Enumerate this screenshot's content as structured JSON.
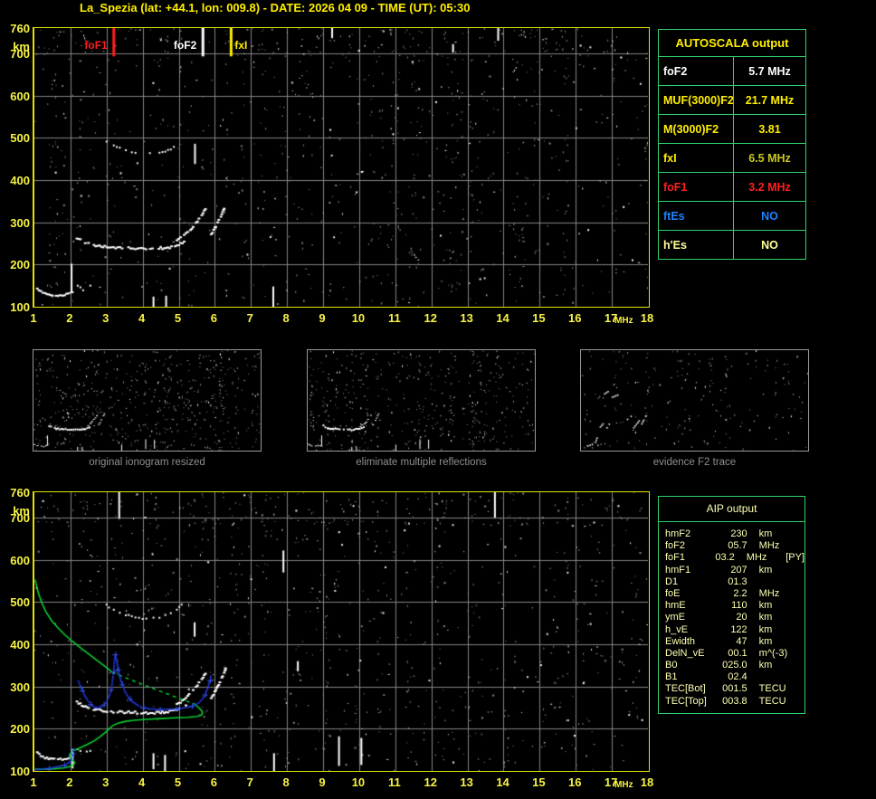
{
  "title": "La_Spezia (lat: +44.1, lon: 009.8) - DATE: 2026 04 09 - TIME (UT): 05:30",
  "colors": {
    "title": "#ffef00",
    "axis_label": "#f7f342",
    "plot_border": "#e3e300",
    "grid": "#848484",
    "noise_gray": "#8a8a8a",
    "noise_white": "#e8e8e8",
    "trace_white": "#ffffff",
    "table_border": "#2fd26a",
    "thumb_border": "#9a9a9a",
    "caption": "#8f8f8f",
    "green_profile": "#0ad032",
    "blue_trace": "#2038e0",
    "blue_cross": "#3a5aff",
    "aip_text": "#ffffb4"
  },
  "axes": {
    "x_ticks": [
      1,
      2,
      3,
      4,
      5,
      6,
      7,
      8,
      9,
      10,
      11,
      12,
      13,
      14,
      15,
      16,
      17,
      18
    ],
    "x_unit": "MHz",
    "y_ticks": [
      760,
      700,
      600,
      500,
      400,
      300,
      200,
      100
    ],
    "y_unit": "km",
    "x_range": [
      1,
      18
    ],
    "y_range": [
      100,
      760
    ]
  },
  "top_plot": {
    "seed": 7,
    "markers": [
      {
        "label": "foF1",
        "mhz": 3.2,
        "color": "#ff1f1f",
        "side": "left"
      },
      {
        "label": "foF2",
        "mhz": 5.67,
        "color": "#ffffff",
        "side": "left"
      },
      {
        "label": "fxI",
        "mhz": 6.45,
        "color": "#ffef00",
        "side": "right"
      }
    ],
    "streaks": [
      [
        13.85,
        730,
        760
      ],
      [
        9.25,
        736,
        760
      ],
      [
        5.45,
        438,
        486
      ],
      [
        7.62,
        100,
        148
      ],
      [
        4.3,
        100,
        124
      ],
      [
        4.65,
        100,
        126
      ],
      [
        2.03,
        133,
        202
      ],
      [
        12.6,
        702,
        722
      ]
    ]
  },
  "bottom_plot": {
    "seed": 13,
    "overlay": true,
    "streaks": [
      [
        3.35,
        698,
        760
      ],
      [
        13.76,
        700,
        760
      ],
      [
        7.9,
        570,
        622
      ],
      [
        7.64,
        100,
        142
      ],
      [
        9.44,
        112,
        182
      ],
      [
        10.06,
        114,
        178
      ],
      [
        5.44,
        418,
        452
      ],
      [
        4.3,
        104,
        142
      ],
      [
        4.62,
        100,
        138
      ],
      [
        2.06,
        106,
        152
      ],
      [
        8.3,
        336,
        360
      ]
    ]
  },
  "traces": {
    "echo_e": [
      [
        1.08,
        143
      ],
      [
        1.18,
        136
      ],
      [
        1.3,
        131
      ],
      [
        1.45,
        128
      ],
      [
        1.6,
        127
      ],
      [
        1.78,
        128
      ],
      [
        1.95,
        130
      ],
      [
        2.05,
        133
      ]
    ],
    "echo_e_scatter": [
      [
        2.2,
        148
      ],
      [
        2.35,
        142
      ],
      [
        2.55,
        148
      ]
    ],
    "echo_f_main": [
      [
        2.18,
        263
      ],
      [
        2.32,
        255
      ],
      [
        2.5,
        249
      ],
      [
        2.7,
        245
      ],
      [
        2.95,
        242
      ],
      [
        3.25,
        240
      ],
      [
        3.55,
        239
      ],
      [
        3.85,
        238
      ],
      [
        4.15,
        237
      ],
      [
        4.45,
        238
      ],
      [
        4.7,
        240
      ],
      [
        4.9,
        244
      ],
      [
        5.05,
        249
      ],
      [
        5.2,
        255
      ]
    ],
    "echo_f_rise1": [
      [
        4.95,
        258
      ],
      [
        5.1,
        266
      ],
      [
        5.25,
        277
      ],
      [
        5.4,
        290
      ],
      [
        5.52,
        303
      ],
      [
        5.64,
        317
      ],
      [
        5.74,
        330
      ]
    ],
    "echo_f_rise2": [
      [
        5.9,
        272
      ],
      [
        6.0,
        286
      ],
      [
        6.08,
        300
      ],
      [
        6.17,
        315
      ],
      [
        6.24,
        330
      ],
      [
        6.3,
        342
      ]
    ],
    "second_hop": [
      [
        3.0,
        492
      ],
      [
        3.2,
        481
      ],
      [
        3.45,
        472
      ],
      [
        3.7,
        466
      ],
      [
        4.0,
        462
      ],
      [
        4.3,
        462
      ],
      [
        4.55,
        466
      ],
      [
        4.78,
        473
      ],
      [
        4.95,
        483
      ],
      [
        5.08,
        494
      ]
    ],
    "green_topside": [
      [
        1.02,
        553
      ],
      [
        1.1,
        524
      ],
      [
        1.2,
        499
      ],
      [
        1.32,
        477
      ],
      [
        1.47,
        457
      ],
      [
        1.65,
        439
      ],
      [
        1.85,
        422
      ],
      [
        2.05,
        407
      ],
      [
        2.27,
        392
      ],
      [
        2.5,
        377
      ],
      [
        2.72,
        363
      ],
      [
        2.92,
        350
      ],
      [
        3.08,
        339
      ],
      [
        3.15,
        334
      ]
    ],
    "green_dashed": [
      [
        3.15,
        334
      ],
      [
        3.55,
        320
      ],
      [
        4.0,
        305
      ],
      [
        4.45,
        290
      ],
      [
        4.85,
        277
      ],
      [
        5.2,
        266
      ],
      [
        5.45,
        258
      ]
    ],
    "green_bottomside": [
      [
        5.45,
        258
      ],
      [
        5.55,
        250
      ],
      [
        5.62,
        244
      ],
      [
        5.66,
        238
      ],
      [
        5.63,
        232
      ],
      [
        5.5,
        229
      ],
      [
        5.25,
        227
      ],
      [
        4.9,
        226
      ],
      [
        4.5,
        224
      ],
      [
        4.1,
        222
      ],
      [
        3.75,
        220
      ],
      [
        3.5,
        217
      ],
      [
        3.32,
        213
      ],
      [
        3.18,
        208
      ],
      [
        3.07,
        200
      ],
      [
        2.96,
        191
      ],
      [
        2.82,
        181
      ],
      [
        2.65,
        171
      ],
      [
        2.45,
        162
      ],
      [
        2.25,
        154
      ],
      [
        2.1,
        149
      ],
      [
        2.02,
        144
      ],
      [
        1.97,
        137
      ],
      [
        1.99,
        130
      ],
      [
        2.06,
        125
      ],
      [
        2.12,
        120
      ],
      [
        2.08,
        114
      ],
      [
        1.97,
        110
      ],
      [
        1.8,
        107
      ],
      [
        1.55,
        105
      ],
      [
        1.25,
        104
      ],
      [
        1.02,
        104
      ]
    ],
    "blue_e": [
      [
        1.02,
        103
      ],
      [
        1.2,
        104
      ],
      [
        1.4,
        106
      ],
      [
        1.58,
        109
      ],
      [
        1.75,
        112
      ],
      [
        1.9,
        116
      ],
      [
        1.99,
        122
      ],
      [
        2.04,
        131
      ],
      [
        2.07,
        142
      ],
      [
        2.09,
        152
      ]
    ],
    "blue_f": [
      [
        2.22,
        312
      ],
      [
        2.3,
        296
      ],
      [
        2.38,
        281
      ],
      [
        2.47,
        268
      ],
      [
        2.56,
        258
      ],
      [
        2.66,
        251
      ],
      [
        2.76,
        249
      ],
      [
        2.87,
        253
      ],
      [
        2.97,
        261
      ],
      [
        3.05,
        273
      ],
      [
        3.11,
        288
      ],
      [
        3.15,
        305
      ],
      [
        3.18,
        323
      ],
      [
        3.2,
        342
      ],
      [
        3.22,
        360
      ],
      [
        3.24,
        376
      ],
      [
        3.27,
        366
      ],
      [
        3.31,
        345
      ],
      [
        3.36,
        324
      ],
      [
        3.43,
        305
      ],
      [
        3.51,
        288
      ],
      [
        3.61,
        274
      ],
      [
        3.73,
        263
      ],
      [
        3.87,
        255
      ],
      [
        4.02,
        250
      ],
      [
        4.2,
        247
      ],
      [
        4.4,
        246
      ],
      [
        4.62,
        246
      ],
      [
        4.85,
        246
      ],
      [
        5.05,
        248
      ],
      [
        5.25,
        251
      ],
      [
        5.42,
        255
      ],
      [
        5.55,
        261
      ],
      [
        5.65,
        270
      ],
      [
        5.73,
        281
      ],
      [
        5.8,
        295
      ],
      [
        5.85,
        310
      ],
      [
        5.89,
        324
      ]
    ],
    "f2_fragments": [
      [
        2.6,
        470,
        3.1,
        500
      ],
      [
        3.3,
        455,
        3.7,
        470
      ],
      [
        4.3,
        300,
        4.7,
        330
      ],
      [
        2.3,
        250,
        2.6,
        280
      ],
      [
        2.9,
        255,
        3.15,
        290
      ],
      [
        4.9,
        255,
        5.3,
        300
      ],
      [
        5.5,
        280,
        5.8,
        330
      ],
      [
        1.3,
        130,
        1.8,
        145
      ],
      [
        2.05,
        160,
        2.2,
        200
      ]
    ]
  },
  "autoscala": {
    "header": "AUTOSCALA output",
    "rows": [
      {
        "label": "foF2",
        "value": "5.7 MHz",
        "color": "#ffffff"
      },
      {
        "label": "MUF(3000)F2",
        "value": "21.7 MHz",
        "color": "#ffef00"
      },
      {
        "label": "M(3000)F2",
        "value": "3.81",
        "color": "#ffef00"
      },
      {
        "label": "fxI",
        "value": "6.5 MHz",
        "color": "#ffef00",
        "value_color": "#c9c91e"
      },
      {
        "label": "foF1",
        "value": "3.2 MHz",
        "color": "#ff1f1f"
      },
      {
        "label": "ftEs",
        "value": "NO",
        "color": "#1e82ff"
      },
      {
        "label": "h'Es",
        "value": "NO",
        "color": "#ffff96"
      }
    ]
  },
  "aip": {
    "header": "AIP output",
    "rows": [
      {
        "label": "hmF2",
        "value": "230",
        "unit": "km",
        "extra": ""
      },
      {
        "label": "foF2",
        "value": "05.7",
        "unit": "MHz",
        "extra": ""
      },
      {
        "label": "foF1",
        "value": "03.2",
        "unit": "MHz",
        "extra": "[PY]"
      },
      {
        "label": "hmF1",
        "value": "207",
        "unit": "km",
        "extra": ""
      },
      {
        "label": "D1",
        "value": "01.3",
        "unit": "",
        "extra": ""
      },
      {
        "label": "foE",
        "value": "2.2",
        "unit": "MHz",
        "extra": ""
      },
      {
        "label": "hmE",
        "value": "110",
        "unit": "km",
        "extra": ""
      },
      {
        "label": "ymE",
        "value": "20",
        "unit": "km",
        "extra": ""
      },
      {
        "label": "h_vE",
        "value": "122",
        "unit": "km",
        "extra": ""
      },
      {
        "label": "Ewidth",
        "value": "47",
        "unit": "km",
        "extra": ""
      },
      {
        "label": "DelN_vE",
        "value": "00.1",
        "unit": "m^(-3)",
        "extra": ""
      },
      {
        "label": "B0",
        "value": "025.0",
        "unit": "km",
        "extra": ""
      },
      {
        "label": "B1",
        "value": "02.4",
        "unit": "",
        "extra": ""
      },
      {
        "label": "TEC[Bot]",
        "value": "001.5",
        "unit": "TECU",
        "extra": ""
      },
      {
        "label": "TEC[Top]",
        "value": "003.8",
        "unit": "TECU",
        "extra": ""
      }
    ]
  },
  "thumbnails": [
    {
      "caption": "original ionogram resized"
    },
    {
      "caption": "eliminate multiple reflections"
    },
    {
      "caption": "evidence F2 trace"
    }
  ],
  "chart_data": {
    "type": "scatter",
    "title": "Ionogram - virtual height (km) vs frequency (MHz)",
    "xlabel": "MHz",
    "ylabel": "km",
    "xlim": [
      1,
      18
    ],
    "ylim": [
      100,
      760
    ],
    "grid": true,
    "scaled_values": {
      "foF2_MHz": 5.7,
      "MUF3000F2_MHz": 21.7,
      "M3000F2": 3.81,
      "fxI_MHz": 6.5,
      "foF1_MHz": 3.2,
      "ftEs": "NO",
      "hEs": "NO",
      "hmF2_km": 230,
      "hmF1_km": 207,
      "foE_MHz": 2.2,
      "hmE_km": 110
    }
  }
}
